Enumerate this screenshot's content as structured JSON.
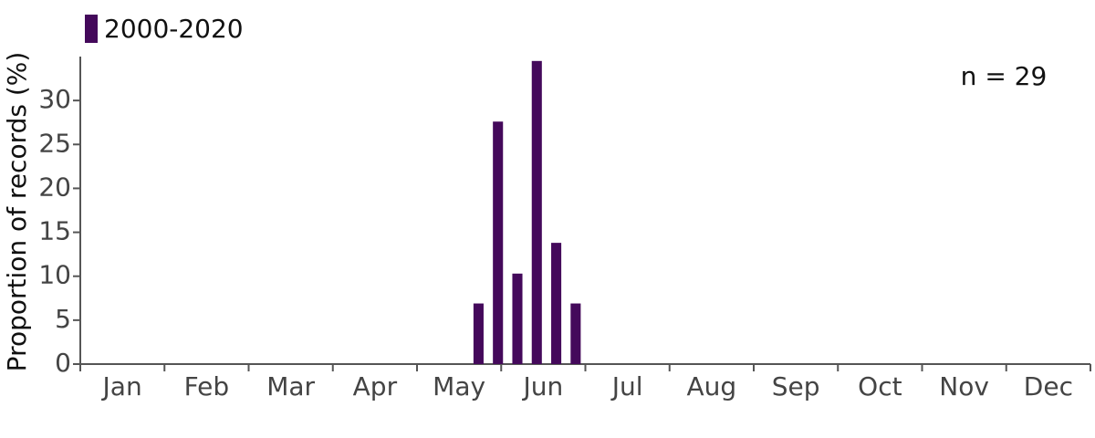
{
  "chart_data": {
    "type": "bar",
    "legend": "2000-2020",
    "annotation": "n = 29",
    "y_label": "Proportion of records (%)",
    "months": [
      "Jan",
      "Feb",
      "Mar",
      "Apr",
      "May",
      "Jun",
      "Jul",
      "Aug",
      "Sep",
      "Oct",
      "Nov",
      "Dec"
    ],
    "categories": [
      null,
      null,
      null,
      null,
      null,
      null,
      null,
      null,
      null,
      null,
      null,
      null,
      null,
      null,
      null,
      null,
      null,
      null,
      null,
      null,
      null,
      null,
      null,
      null,
      null,
      null,
      null,
      null,
      null,
      null,
      null,
      null,
      null,
      null,
      null,
      null,
      null,
      null,
      null,
      null,
      null,
      null,
      null,
      null,
      null,
      null,
      null,
      null,
      null,
      null,
      null,
      null
    ],
    "values": [
      0,
      0,
      0,
      0,
      0,
      0,
      0,
      0,
      0,
      0,
      0,
      0,
      0,
      0,
      0,
      0,
      0,
      0,
      0,
      0,
      6.9,
      27.6,
      10.3,
      34.5,
      13.8,
      6.9,
      0,
      0,
      0,
      0,
      0,
      0,
      0,
      0,
      0,
      0,
      0,
      0,
      0,
      0,
      0,
      0,
      0,
      0,
      0,
      0,
      0,
      0,
      0,
      0,
      0,
      0
    ],
    "color": "#44095b",
    "ylim": [
      0,
      35
    ],
    "yticks": [
      0,
      5,
      10,
      15,
      20,
      25,
      30
    ],
    "grid": false
  }
}
